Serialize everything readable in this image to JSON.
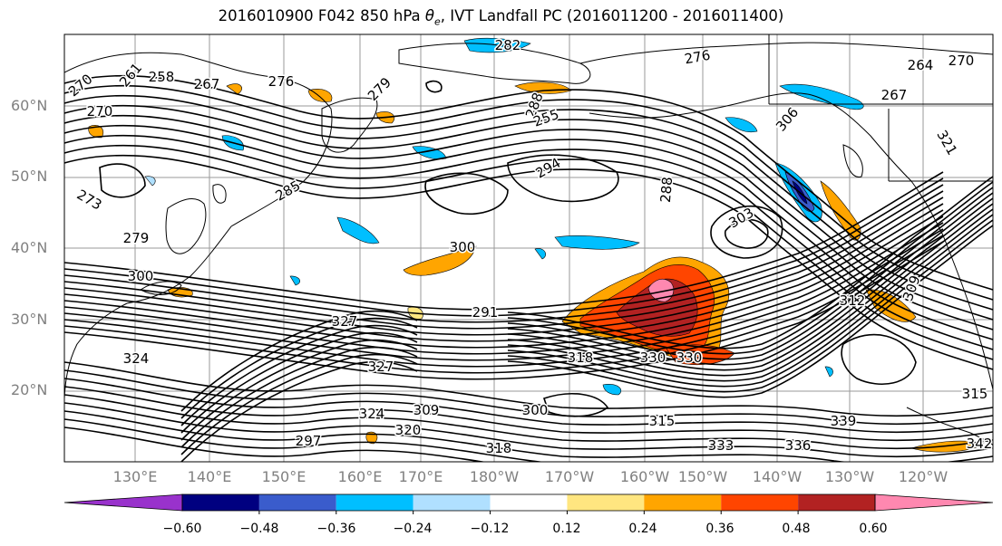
{
  "title": {
    "prefix": "2016010900 F042 850 hPa ",
    "theta": "θ",
    "theta_sub": "e",
    "suffix": ", IVT Landfall PC (2016011200 - 2016011400)"
  },
  "axes": {
    "lat_labels": [
      "60°N",
      "50°N",
      "40°N",
      "30°N",
      "20°N"
    ],
    "lon_labels": [
      "130°E",
      "140°E",
      "150°E",
      "160°E",
      "170°E",
      "180°W",
      "170°W",
      "160°W",
      "150°W",
      "140°W",
      "130°W",
      "120°W"
    ]
  },
  "contour_labels": [
    "270",
    "261",
    "258",
    "267",
    "276",
    "279",
    "282",
    "288",
    "255",
    "276",
    "270",
    "267",
    "264",
    "270",
    "273",
    "279",
    "285",
    "294",
    "288",
    "300",
    "291",
    "300",
    "303",
    "306",
    "309",
    "312",
    "315",
    "318",
    "321",
    "324",
    "324",
    "327",
    "327",
    "330",
    "330",
    "333",
    "336",
    "339",
    "342",
    "318",
    "315",
    "320",
    "297",
    "309",
    "300"
  ],
  "colorbar": {
    "ticks": [
      "−0.60",
      "−0.48",
      "−0.36",
      "−0.24",
      "−0.12",
      "0.12",
      "0.24",
      "0.36",
      "0.48",
      "0.60"
    ],
    "colors": [
      "#9932cc",
      "#000080",
      "#3a5ccc",
      "#00bfff",
      "#b0e0ff",
      "#ffffff",
      "#ffe680",
      "#ffa500",
      "#ff4500",
      "#b22222",
      "#ff88b0"
    ]
  },
  "shade_colors": {
    "orange": "#ffa500",
    "light_yellow": "#ffe680",
    "red_orange": "#ff4500",
    "dark_red": "#b22222",
    "pink": "#ff88b0",
    "light_blue": "#b0e0ff",
    "sky_blue": "#00bfff",
    "blue": "#3a5ccc",
    "navy": "#000080"
  }
}
